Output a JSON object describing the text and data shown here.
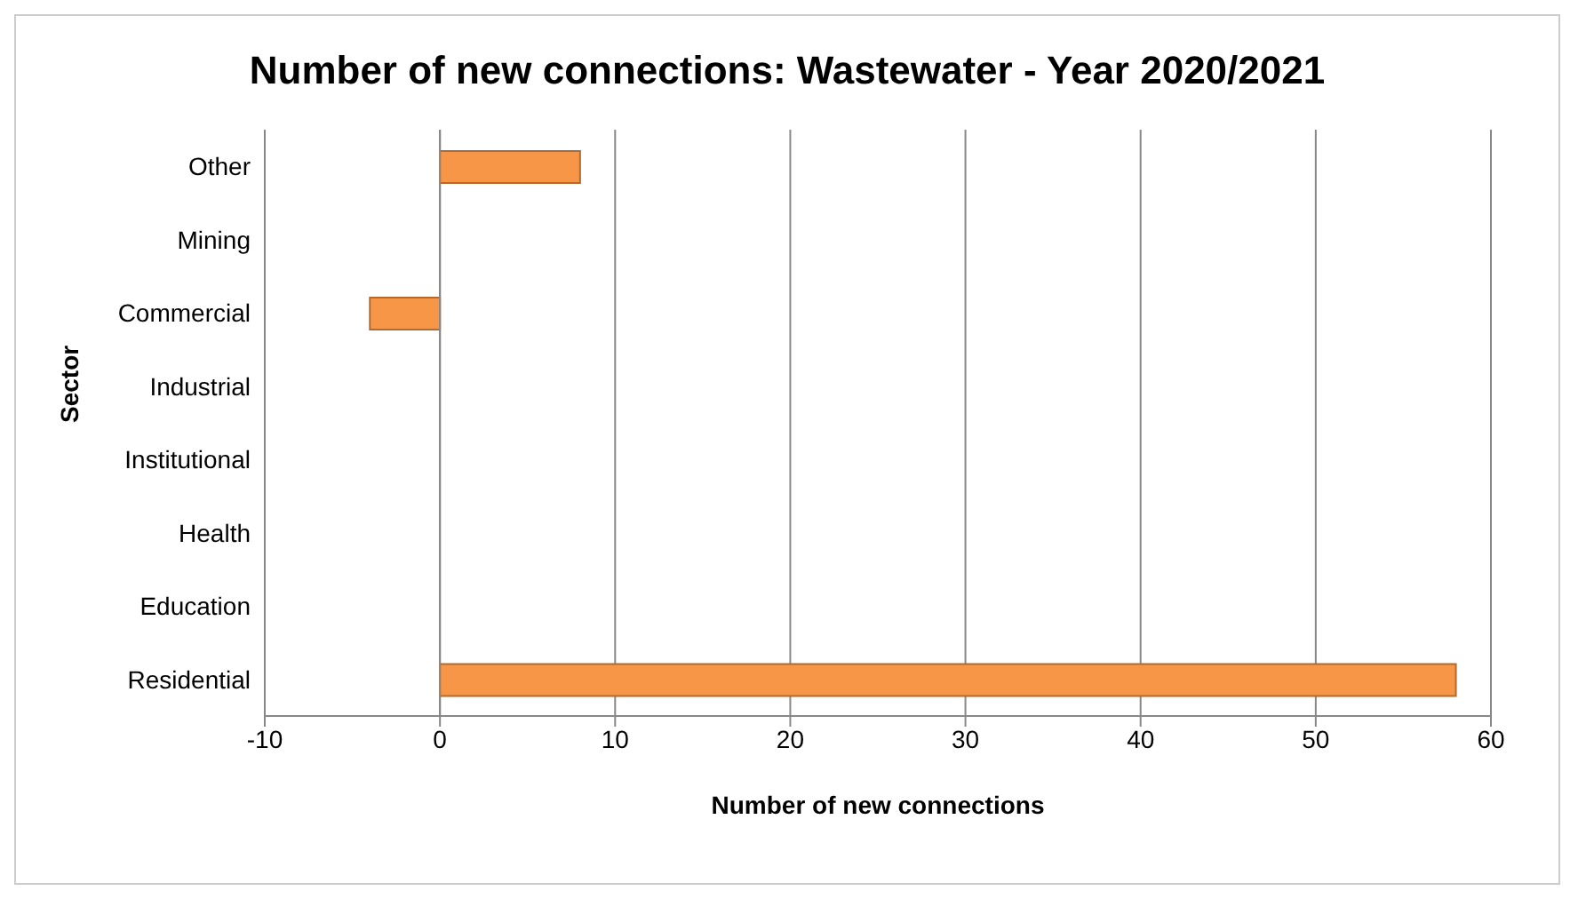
{
  "chart_data": {
    "type": "bar",
    "orientation": "horizontal",
    "title": "Number of new connections: Wastewater - Year 2020/2021",
    "xlabel": "Number of new connections",
    "ylabel": "Sector",
    "categories": [
      "Other",
      "Mining",
      "Commercial",
      "Industrial",
      "Institutional",
      "Health",
      "Education",
      "Residential"
    ],
    "values": [
      8,
      0,
      -4,
      0,
      0,
      0,
      0,
      58
    ],
    "color": "#f79646",
    "xlim": [
      -10,
      60
    ],
    "xticks": [
      -10,
      0,
      10,
      20,
      30,
      40,
      50,
      60
    ],
    "grid": "x"
  }
}
